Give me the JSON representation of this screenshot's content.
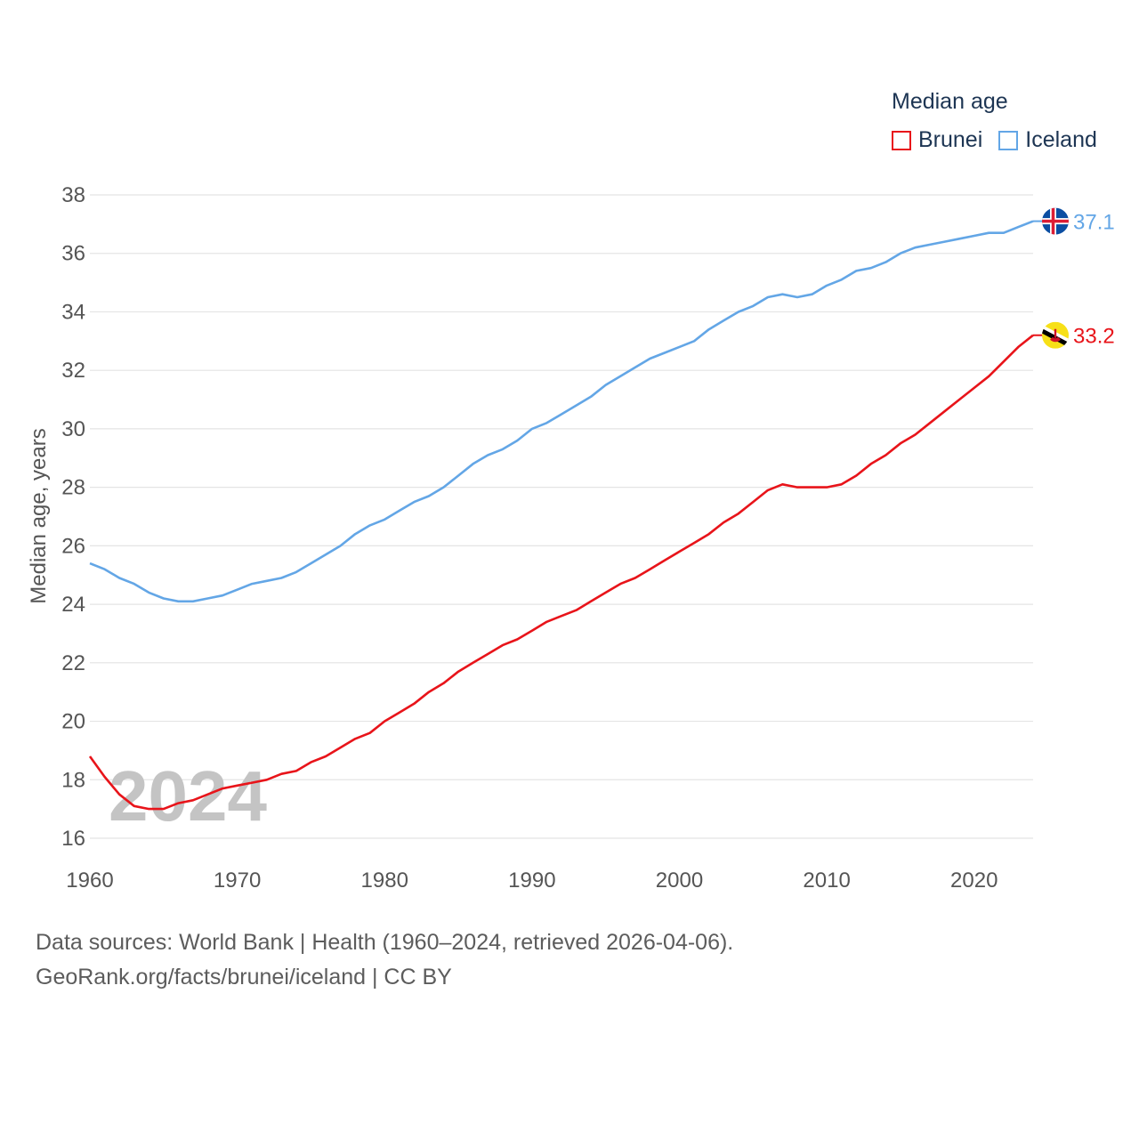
{
  "legend": {
    "title": "Median age",
    "items": [
      {
        "name": "Brunei",
        "color": "#e8141a"
      },
      {
        "name": "Iceland",
        "color": "#63a6e6"
      }
    ]
  },
  "watermark_year": "2024",
  "footer": {
    "line1": "Data sources: World Bank | Health (1960–2024, retrieved 2026-04-06).",
    "line2": "GeoRank.org/facts/brunei/iceland | CC BY"
  },
  "chart_data": {
    "type": "line",
    "title": "Median age",
    "xlabel": "",
    "ylabel": "Median age, years",
    "xlim": [
      1960,
      2024
    ],
    "ylim": [
      16,
      38
    ],
    "x_ticks": [
      1960,
      1970,
      1980,
      1990,
      2000,
      2010,
      2020
    ],
    "y_ticks": [
      16,
      18,
      20,
      22,
      24,
      26,
      28,
      30,
      32,
      34,
      36,
      38
    ],
    "grid": true,
    "legend_position": "top-right",
    "x": [
      1960,
      1961,
      1962,
      1963,
      1964,
      1965,
      1966,
      1967,
      1968,
      1969,
      1970,
      1971,
      1972,
      1973,
      1974,
      1975,
      1976,
      1977,
      1978,
      1979,
      1980,
      1981,
      1982,
      1983,
      1984,
      1985,
      1986,
      1987,
      1988,
      1989,
      1990,
      1991,
      1992,
      1993,
      1994,
      1995,
      1996,
      1997,
      1998,
      1999,
      2000,
      2001,
      2002,
      2003,
      2004,
      2005,
      2006,
      2007,
      2008,
      2009,
      2010,
      2011,
      2012,
      2013,
      2014,
      2015,
      2016,
      2017,
      2018,
      2019,
      2020,
      2021,
      2022,
      2023,
      2024
    ],
    "series": [
      {
        "name": "Brunei",
        "color": "#e8141a",
        "end_label": "33.2",
        "flag": "brunei-flag-icon",
        "values": [
          18.8,
          18.1,
          17.5,
          17.1,
          17.0,
          17.0,
          17.2,
          17.3,
          17.5,
          17.7,
          17.8,
          17.9,
          18.0,
          18.2,
          18.3,
          18.6,
          18.8,
          19.1,
          19.4,
          19.6,
          20.0,
          20.3,
          20.6,
          21.0,
          21.3,
          21.7,
          22.0,
          22.3,
          22.6,
          22.8,
          23.1,
          23.4,
          23.6,
          23.8,
          24.1,
          24.4,
          24.7,
          24.9,
          25.2,
          25.5,
          25.8,
          26.1,
          26.4,
          26.8,
          27.1,
          27.5,
          27.9,
          28.1,
          28.0,
          28.0,
          28.0,
          28.1,
          28.4,
          28.8,
          29.1,
          29.5,
          29.8,
          30.2,
          30.6,
          31.0,
          31.4,
          31.8,
          32.3,
          32.8,
          33.2
        ]
      },
      {
        "name": "Iceland",
        "color": "#63a6e6",
        "end_label": "37.1",
        "flag": "iceland-flag-icon",
        "values": [
          25.4,
          25.2,
          24.9,
          24.7,
          24.4,
          24.2,
          24.1,
          24.1,
          24.2,
          24.3,
          24.5,
          24.7,
          24.8,
          24.9,
          25.1,
          25.4,
          25.7,
          26.0,
          26.4,
          26.7,
          26.9,
          27.2,
          27.5,
          27.7,
          28.0,
          28.4,
          28.8,
          29.1,
          29.3,
          29.6,
          30.0,
          30.2,
          30.5,
          30.8,
          31.1,
          31.5,
          31.8,
          32.1,
          32.4,
          32.6,
          32.8,
          33.0,
          33.4,
          33.7,
          34.0,
          34.2,
          34.5,
          34.6,
          34.5,
          34.6,
          34.9,
          35.1,
          35.4,
          35.5,
          35.7,
          36.0,
          36.2,
          36.3,
          36.4,
          36.5,
          36.6,
          36.7,
          36.7,
          36.9,
          37.1
        ]
      }
    ]
  }
}
